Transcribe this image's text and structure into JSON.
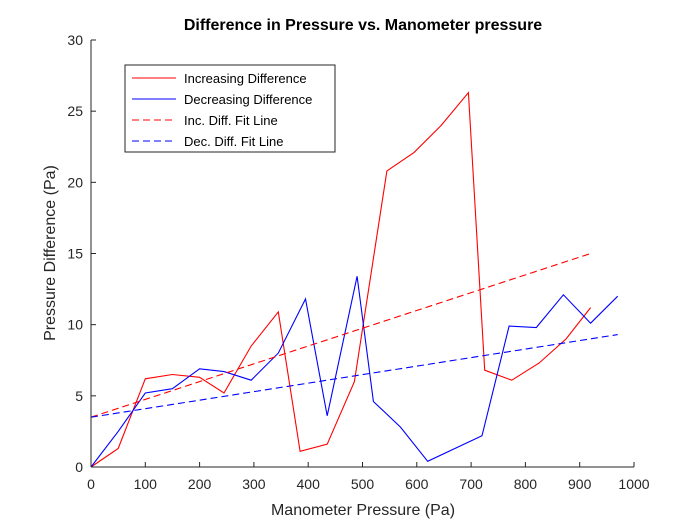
{
  "chart_data": {
    "type": "line",
    "title": "Difference in Pressure vs. Manometer pressure",
    "xlabel": "Manometer Pressure (Pa)",
    "ylabel": "Pressure Difference (Pa)",
    "xlim": [
      0,
      1000
    ],
    "ylim": [
      0,
      30
    ],
    "xticks": [
      "0",
      "100",
      "200",
      "300",
      "400",
      "500",
      "600",
      "700",
      "800",
      "900",
      "1000"
    ],
    "yticks": [
      "0",
      "5",
      "10",
      "15",
      "20",
      "25",
      "30"
    ],
    "grid": false,
    "legend_position": "top-left",
    "series": [
      {
        "name": "Increasing Difference",
        "color": "#ff0000",
        "style": "solid",
        "x": [
          0,
          50,
          100,
          150,
          200,
          245,
          295,
          345,
          385,
          435,
          485,
          545,
          595,
          645,
          695,
          725,
          775,
          825,
          875,
          920
        ],
        "y": [
          0,
          1.3,
          6.2,
          6.5,
          6.3,
          5.2,
          8.5,
          10.9,
          1.1,
          1.6,
          6.0,
          20.8,
          22.1,
          24.0,
          26.3,
          6.8,
          6.1,
          7.3,
          9.0,
          11.2
        ]
      },
      {
        "name": "Decreasing Difference",
        "color": "#0000ff",
        "style": "solid",
        "x": [
          0,
          50,
          100,
          150,
          200,
          245,
          295,
          345,
          395,
          435,
          490,
          520,
          570,
          620,
          720,
          770,
          820,
          870,
          920,
          970
        ],
        "y": [
          0,
          2.5,
          5.2,
          5.5,
          6.9,
          6.7,
          6.1,
          8.0,
          11.8,
          3.6,
          13.4,
          4.6,
          2.8,
          0.4,
          2.2,
          9.9,
          9.8,
          12.1,
          10.1,
          12.0
        ]
      },
      {
        "name": "Inc. Diff. Fit Line",
        "color": "#ff0000",
        "style": "dashed",
        "x": [
          0,
          920
        ],
        "y": [
          3.5,
          15.0
        ]
      },
      {
        "name": "Dec. Diff. Fit Line",
        "color": "#0000ff",
        "style": "dashed",
        "x": [
          0,
          970
        ],
        "y": [
          3.5,
          9.3
        ]
      }
    ]
  }
}
